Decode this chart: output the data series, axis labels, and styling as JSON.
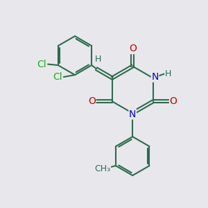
{
  "background_color": "#e8e8ec",
  "bond_color": "#2d6b4f",
  "bond_width": 1.5,
  "atom_colors": {
    "O": "#cc0000",
    "N": "#0000cc",
    "Cl": "#22aa22",
    "H": "#2d6b4f",
    "C": "#2d6b4f"
  },
  "font_size": 10,
  "fig_size": [
    3.0,
    3.0
  ],
  "dpi": 100,
  "xlim": [
    0,
    10
  ],
  "ylim": [
    0,
    10
  ]
}
